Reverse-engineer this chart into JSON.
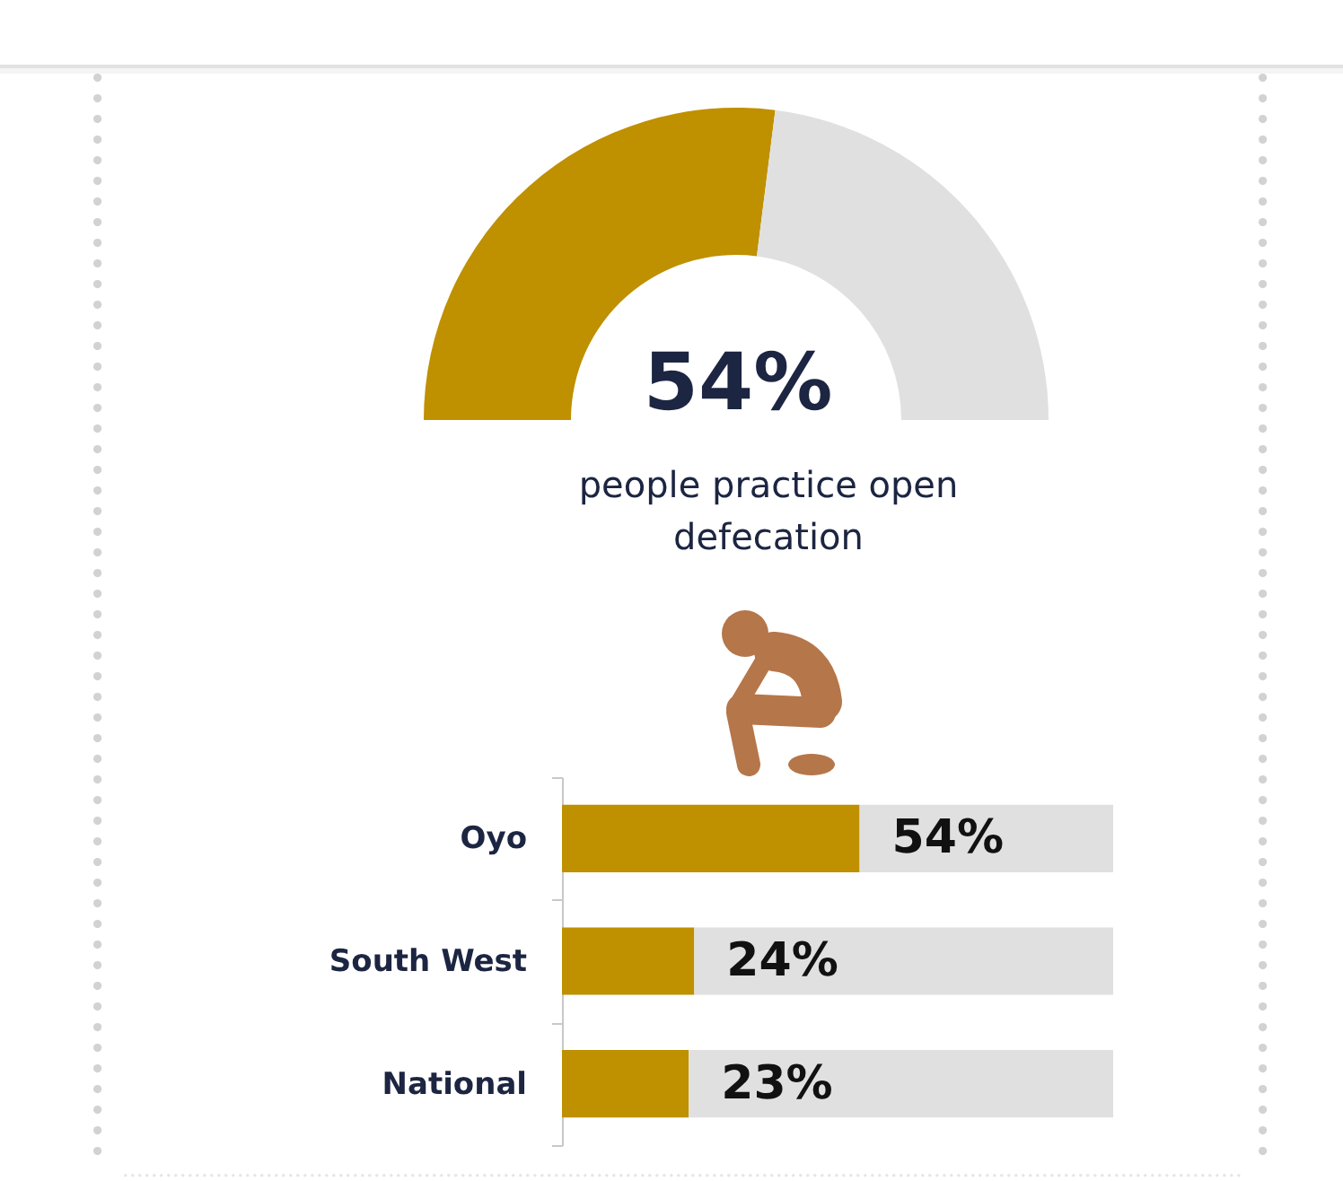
{
  "chart_data": [
    {
      "type": "donut",
      "categories": [
        null,
        null
      ],
      "values": [
        54,
        46
      ],
      "colors": [
        "#bf9000",
        "#e0e0e0"
      ],
      "value_labels": [
        "54%",
        null
      ],
      "annotations": [
        "people practice open defecation"
      ]
    },
    {
      "type": "bar",
      "orientation": "horizontal",
      "stacked": true,
      "categories": [
        "Oyo",
        "South West",
        "National"
      ],
      "series": [
        {
          "color": "#bf9000",
          "values": [
            54,
            24,
            23
          ],
          "value_labels": [
            "54%",
            "24%",
            "23%"
          ]
        },
        {
          "color": "#e0e0e0",
          "values": [
            46,
            76,
            77
          ]
        }
      ],
      "xlim": [
        0,
        100
      ],
      "tick_labels": "y"
    }
  ]
}
